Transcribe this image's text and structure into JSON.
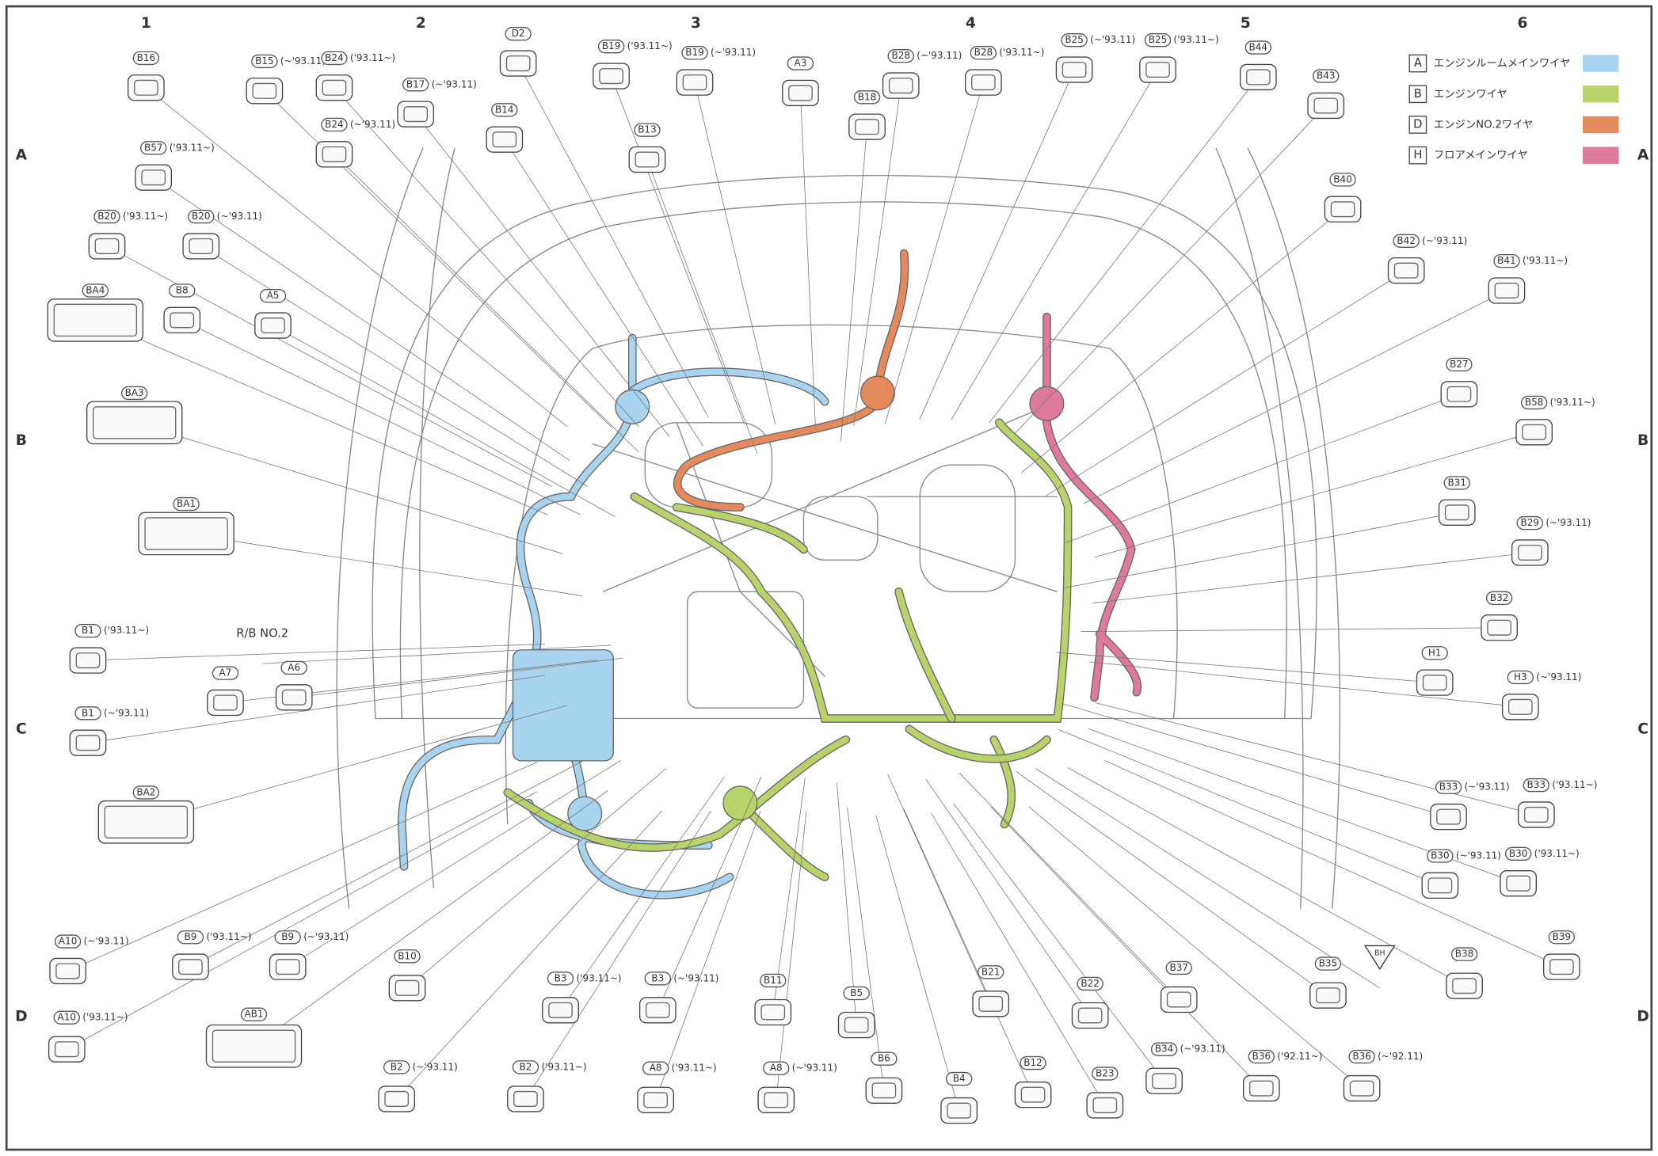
{
  "grid": {
    "columns": [
      "1",
      "2",
      "3",
      "4",
      "5",
      "6"
    ],
    "rows": [
      "A",
      "B",
      "C",
      "D"
    ]
  },
  "legend": [
    {
      "code": "A",
      "label": "エンジンルームメインワイヤ",
      "color": "#a9d4f0"
    },
    {
      "code": "B",
      "label": "エンジンワイヤ",
      "color": "#b7d36a"
    },
    {
      "code": "D",
      "label": "エンジンNO.2ワイヤ",
      "color": "#e48a5c"
    },
    {
      "code": "H",
      "label": "フロアメインワイヤ",
      "color": "#e07a9a"
    }
  ],
  "connectors": [
    {
      "id": "B16"
    },
    {
      "id": "B15",
      "note": "(~'93.11)"
    },
    {
      "id": "B24",
      "note": "('93.11~)"
    },
    {
      "id": "B17",
      "note": "(~'93.11)"
    },
    {
      "id": "D2"
    },
    {
      "id": "B14"
    },
    {
      "id": "B24",
      "note": "(~'93.11)"
    },
    {
      "id": "B19",
      "note": "('93.11~)"
    },
    {
      "id": "B19",
      "note": "(~'93.11)"
    },
    {
      "id": "A3"
    },
    {
      "id": "B13"
    },
    {
      "id": "B18"
    },
    {
      "id": "B28",
      "note": "(~'93.11)"
    },
    {
      "id": "B28",
      "note": "('93.11~)"
    },
    {
      "id": "B25",
      "note": "(~'93.11)"
    },
    {
      "id": "B25",
      "note": "('93.11~)"
    },
    {
      "id": "B44"
    },
    {
      "id": "B43"
    },
    {
      "id": "B57",
      "note": "('93.11~)"
    },
    {
      "id": "B20",
      "note": "('93.11~)"
    },
    {
      "id": "B20",
      "note": "(~'93.11)"
    },
    {
      "id": "BA4"
    },
    {
      "id": "B8"
    },
    {
      "id": "A5"
    },
    {
      "id": "B40"
    },
    {
      "id": "B42",
      "note": "(~'93.11)"
    },
    {
      "id": "B41",
      "note": "('93.11~)"
    },
    {
      "id": "BA3"
    },
    {
      "id": "B27"
    },
    {
      "id": "B58",
      "note": "('93.11~)"
    },
    {
      "id": "BA1"
    },
    {
      "id": "B31"
    },
    {
      "id": "B29",
      "note": "(~'93.11)"
    },
    {
      "id": "R/B NO.2"
    },
    {
      "id": "B1",
      "note": "('93.11~)"
    },
    {
      "id": "A7"
    },
    {
      "id": "A6"
    },
    {
      "id": "B32"
    },
    {
      "id": "H1"
    },
    {
      "id": "H3",
      "note": "(~'93.11)"
    },
    {
      "id": "B1",
      "note": "(~'93.11)"
    },
    {
      "id": "BA2"
    },
    {
      "id": "B33",
      "note": "(~'93.11)"
    },
    {
      "id": "B33",
      "note": "('93.11~)"
    },
    {
      "id": "B30",
      "note": "(~'93.11)"
    },
    {
      "id": "B30",
      "note": "('93.11~)"
    },
    {
      "id": "A10",
      "note": "(~'93.11)"
    },
    {
      "id": "B9",
      "note": "('93.11~)"
    },
    {
      "id": "B9",
      "note": "(~'93.11)"
    },
    {
      "id": "B10"
    },
    {
      "id": "B21"
    },
    {
      "id": "B22"
    },
    {
      "id": "B37"
    },
    {
      "id": "B35"
    },
    {
      "id": "BH"
    },
    {
      "id": "B38"
    },
    {
      "id": "B39"
    },
    {
      "id": "A10",
      "note": "('93.11~)"
    },
    {
      "id": "AB1"
    },
    {
      "id": "B3",
      "note": "('93.11~)"
    },
    {
      "id": "B3",
      "note": "(~'93.11)"
    },
    {
      "id": "B11"
    },
    {
      "id": "B5"
    },
    {
      "id": "B34",
      "note": "(~'93.11)"
    },
    {
      "id": "B36",
      "note": "('92.11~)"
    },
    {
      "id": "B36",
      "note": "(~'92.11)"
    },
    {
      "id": "B2",
      "note": "(~'93.11)"
    },
    {
      "id": "B2",
      "note": "('93.11~)"
    },
    {
      "id": "A8",
      "note": "('93.11~)"
    },
    {
      "id": "A8",
      "note": "(~'93.11)"
    },
    {
      "id": "B6"
    },
    {
      "id": "B4"
    },
    {
      "id": "B12"
    },
    {
      "id": "B23"
    }
  ]
}
